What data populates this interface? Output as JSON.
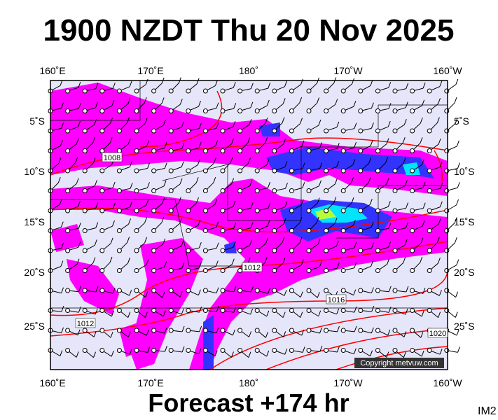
{
  "header": {
    "title": "1900 NZDT Thu 20 Nov 2025"
  },
  "map": {
    "lon_labels": [
      "160˚E",
      "170˚E",
      "180˚",
      "170˚W",
      "160˚W"
    ],
    "lat_labels": [
      "5˚S",
      "10˚S",
      "15˚S",
      "20˚S",
      "25˚S"
    ],
    "isobar_labels": [
      "1008",
      "1012",
      "1016",
      "1012",
      "1020"
    ],
    "copyright": "Copyright metvuw.com"
  },
  "footer": {
    "forecast": "Forecast +174 hr",
    "image_id": "IM2"
  }
}
